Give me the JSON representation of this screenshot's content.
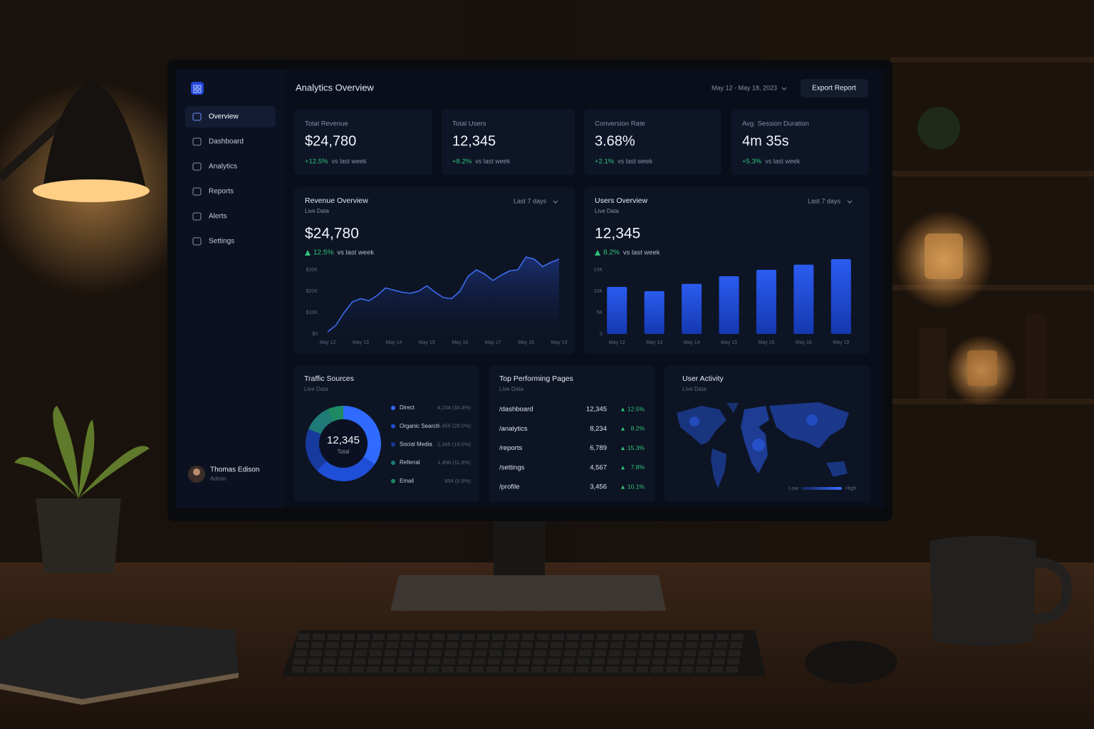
{
  "header": {
    "title": "Analytics Overview",
    "date_range": "May 12 - May 18, 2023",
    "export_button": "Export Report"
  },
  "sidebar": {
    "nav": [
      "Overview",
      "Dashboard",
      "Analytics",
      "Reports",
      "Alerts",
      "Settings"
    ],
    "user": {
      "name": "Thomas Edison",
      "role": "Admin"
    }
  },
  "kpis": [
    {
      "label": "Total Revenue",
      "value": "$24,780",
      "change": "+12.5%",
      "note": "vs last week"
    },
    {
      "label": "Total Users",
      "value": "12,345",
      "change": "+8.2%",
      "note": "vs last week"
    },
    {
      "label": "Conversion Rate",
      "value": "3.68%",
      "change": "+2.1%",
      "note": "vs last week"
    },
    {
      "label": "Avg. Session Duration",
      "value": "4m 35s",
      "change": "+5.3%",
      "note": "vs last week"
    }
  ],
  "chart_data": [
    {
      "type": "line",
      "title": "Revenue Overview",
      "subtitle": "Live Data",
      "range": "Last 7 days",
      "headline": "$24,780",
      "change": "12.5%",
      "note": "vs last week",
      "color": "#3d6df2",
      "categories": [
        "May 12",
        null,
        null,
        null,
        "May 13",
        null,
        null,
        null,
        "May 14",
        null,
        null,
        null,
        "May 15",
        null,
        null,
        null,
        "May 16",
        null,
        null,
        null,
        "May 17",
        null,
        null,
        null,
        "May 18",
        null,
        null,
        null,
        "May 19"
      ],
      "values": [
        1000,
        4000,
        10000,
        15000,
        16500,
        15500,
        18000,
        21500,
        20500,
        19500,
        19000,
        20000,
        22500,
        19500,
        17000,
        16500,
        20000,
        27000,
        30000,
        28000,
        25000,
        27500,
        29500,
        30000,
        36000,
        35000,
        31500,
        33500,
        35000
      ],
      "ylim": [
        0,
        36000
      ],
      "yticks": [
        {
          "value": 0,
          "label": "$0"
        },
        {
          "value": 10000,
          "label": "$10K"
        },
        {
          "value": 20000,
          "label": "$20K"
        },
        {
          "value": 30000,
          "label": "$30K"
        }
      ]
    },
    {
      "type": "bar",
      "title": "Users Overview",
      "subtitle": "Live Data",
      "range": "Last 7 days",
      "headline": "12,345",
      "change": "8.2%",
      "note": "vs last week",
      "color": "#1f4fe0",
      "categories": [
        "May 12",
        "May 13",
        "May 14",
        "May 15",
        "May 16",
        "May 18",
        "May 19"
      ],
      "values": [
        11000,
        10000,
        11700,
        13500,
        15000,
        16200,
        17500
      ],
      "ylim": [
        0,
        18000
      ],
      "yticks": [
        0,
        {
          "value": 5000,
          "label": "5K"
        },
        {
          "value": 10000,
          "label": "10K"
        },
        {
          "value": 15000,
          "label": "15K"
        }
      ]
    },
    {
      "type": "donut",
      "title": "Traffic Sources",
      "subtitle": "Live Data",
      "center_value": "12,345",
      "center_label": "Total",
      "categories": [
        "Direct",
        "Organic Search",
        "Social Media",
        "Referral",
        "Email"
      ],
      "values": [
        4234,
        3456,
        2345,
        1456,
        854
      ],
      "value_labels": [
        "4,234 (34.3%)",
        "3,456 (28.0%)",
        "2,345 (19.0%)",
        "1,456 (11.8%)",
        "854 (6.9%)"
      ],
      "colors": [
        "#2f6bff",
        "#1f4fd6",
        "#173a9e",
        "#1f7a78",
        "#1e8a64"
      ]
    }
  ],
  "top_pages": {
    "title": "Top Performing Pages",
    "subtitle": "Live Data",
    "rows": [
      [
        "/dashboard",
        "12,345",
        "12.5%"
      ],
      [
        "/analytics",
        "8,234",
        "8.2%"
      ],
      [
        "/reports",
        "6,789",
        "15.3%"
      ],
      [
        "/settings",
        "4,567",
        "7.8%"
      ],
      [
        "/profile",
        "3,456",
        "10.1%"
      ]
    ]
  },
  "user_activity": {
    "title": "User Activity",
    "subtitle": "Live Data",
    "legend_low": "Low",
    "legend_high": "High"
  }
}
